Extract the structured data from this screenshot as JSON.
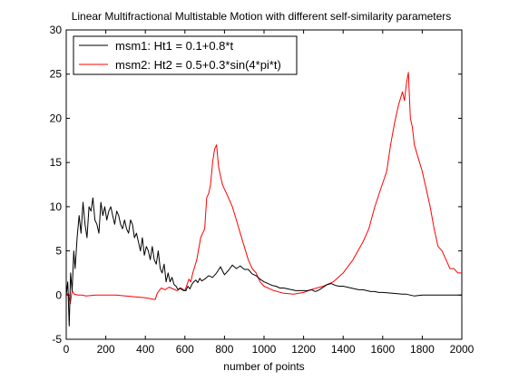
{
  "chart_data": {
    "type": "line",
    "title": "Linear Multifractional Multistable Motion with different self-similarity parameters",
    "xlabel": "number of points",
    "ylabel": "",
    "xlim": [
      0,
      2000
    ],
    "ylim": [
      -5,
      30
    ],
    "xticks": [
      0,
      200,
      400,
      600,
      800,
      1000,
      1200,
      1400,
      1600,
      1800,
      2000
    ],
    "yticks": [
      -5,
      0,
      5,
      10,
      15,
      20,
      25,
      30
    ],
    "grid": false,
    "legend_position": "top-left",
    "series": [
      {
        "name": "msm1: Ht1 = 0.1+0.8*t",
        "color": "#000000",
        "x": [
          0,
          8,
          15,
          22,
          30,
          38,
          45,
          55,
          65,
          75,
          85,
          95,
          105,
          115,
          125,
          135,
          145,
          155,
          165,
          175,
          185,
          195,
          205,
          215,
          225,
          235,
          245,
          255,
          265,
          275,
          285,
          295,
          305,
          315,
          325,
          335,
          345,
          355,
          365,
          375,
          385,
          395,
          405,
          415,
          425,
          435,
          445,
          455,
          465,
          475,
          485,
          495,
          505,
          515,
          525,
          535,
          545,
          555,
          565,
          575,
          585,
          595,
          605,
          615,
          625,
          635,
          645,
          655,
          665,
          675,
          685,
          700,
          720,
          740,
          760,
          780,
          800,
          820,
          840,
          860,
          880,
          900,
          920,
          940,
          960,
          980,
          1000,
          1020,
          1040,
          1060,
          1080,
          1100,
          1120,
          1140,
          1160,
          1180,
          1200,
          1220,
          1240,
          1260,
          1280,
          1300,
          1320,
          1340,
          1360,
          1380,
          1400,
          1420,
          1440,
          1460,
          1480,
          1500,
          1520,
          1540,
          1560,
          1580,
          1600,
          1650,
          1700,
          1720,
          1760,
          1800,
          1850,
          1900,
          1950,
          2000
        ],
        "y": [
          0,
          1.5,
          -3.5,
          2.5,
          0.5,
          5,
          3,
          6.5,
          9,
          7,
          10.5,
          8,
          6.5,
          10,
          9.5,
          11,
          8.5,
          8,
          7,
          10.5,
          9,
          10,
          8.5,
          9.5,
          10,
          9,
          8,
          9.5,
          9,
          8,
          7.5,
          8.5,
          7.5,
          7,
          8.5,
          8,
          6.5,
          7,
          6,
          5,
          6.5,
          4.5,
          5.5,
          5,
          4,
          5.5,
          4,
          3.5,
          5,
          3,
          2.5,
          3.5,
          1.5,
          2.5,
          1.5,
          2,
          1.2,
          1,
          0.6,
          0.8,
          0.6,
          0.5,
          0.5,
          1,
          0.7,
          1.2,
          1.5,
          1.7,
          1.4,
          1.9,
          1.6,
          1.8,
          2.2,
          2.0,
          2.5,
          3.2,
          2.3,
          2.8,
          3.4,
          3.0,
          3.3,
          2.9,
          2.9,
          2.4,
          2.2,
          1.8,
          1.5,
          1.3,
          1.1,
          1.0,
          0.8,
          0.8,
          0.7,
          0.6,
          0.5,
          0.5,
          0.5,
          0.5,
          0.6,
          0.4,
          0.6,
          0.9,
          1.2,
          1.3,
          1.1,
          1.0,
          1.0,
          0.9,
          0.8,
          0.7,
          0.6,
          0.6,
          0.5,
          0.4,
          0.4,
          0.3,
          0.3,
          0.2,
          0.1,
          0.1,
          -0.1,
          0,
          0,
          0,
          0,
          0
        ]
      },
      {
        "name": "msm2: Ht2 = 0.5+0.3*sin(4*pi*t)",
        "color": "#ff0000",
        "x": [
          0,
          10,
          20,
          30,
          40,
          60,
          80,
          100,
          150,
          200,
          250,
          300,
          350,
          400,
          450,
          460,
          470,
          480,
          500,
          520,
          540,
          560,
          580,
          600,
          620,
          630,
          640,
          660,
          680,
          700,
          710,
          720,
          730,
          740,
          750,
          760,
          770,
          780,
          790,
          800,
          820,
          840,
          860,
          880,
          900,
          920,
          940,
          960,
          980,
          1000,
          1050,
          1100,
          1150,
          1200,
          1250,
          1300,
          1350,
          1400,
          1450,
          1500,
          1530,
          1560,
          1590,
          1620,
          1640,
          1660,
          1680,
          1700,
          1710,
          1720,
          1730,
          1740,
          1750,
          1760,
          1780,
          1800,
          1820,
          1840,
          1860,
          1880,
          1900,
          1920,
          1940,
          1960,
          1980,
          2000
        ],
        "y": [
          0,
          0.2,
          -1,
          0.5,
          0.1,
          0,
          0,
          -0.1,
          0,
          0,
          0,
          -0.1,
          -0.2,
          -0.3,
          -0.5,
          0.2,
          0.5,
          0.8,
          0.6,
          0.9,
          0.7,
          0.5,
          0.8,
          0.5,
          1.8,
          1.5,
          2.5,
          4,
          6.5,
          7.5,
          11,
          11.5,
          12.5,
          15,
          16.5,
          17,
          14.5,
          13.5,
          12.5,
          12,
          11,
          10,
          8.5,
          7,
          5.5,
          4,
          3,
          2.5,
          1.5,
          1,
          0.5,
          0.2,
          0.1,
          0.3,
          0.7,
          1,
          1.5,
          2.5,
          4,
          6,
          7.5,
          10,
          12,
          14,
          17,
          19.5,
          21.5,
          23,
          22,
          24,
          25.2,
          20,
          19,
          17,
          15.5,
          14,
          12,
          10,
          7.5,
          5.5,
          5,
          4,
          3,
          3,
          2.5,
          2.5
        ]
      }
    ]
  }
}
